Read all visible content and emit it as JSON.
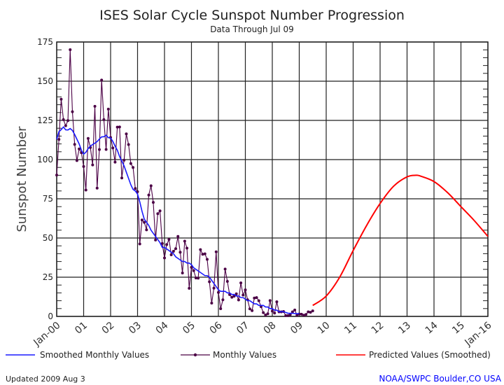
{
  "chart_data": {
    "type": "line",
    "title": "ISES Solar Cycle Sunspot Number Progression",
    "subtitle": "Data Through Jul 09",
    "ylabel": "Sunspot Number",
    "xlabel": "",
    "ylim": [
      0,
      175
    ],
    "yticks": [
      "0",
      "25",
      "50",
      "75",
      "100",
      "125",
      "150",
      "175"
    ],
    "xlim": [
      "2000-01",
      "2016-01"
    ],
    "xticks": [
      "Jan-00",
      "01",
      "02",
      "03",
      "04",
      "05",
      "06",
      "07",
      "08",
      "09",
      "10",
      "11",
      "12",
      "13",
      "14",
      "15",
      "Jan-16"
    ],
    "grid": true,
    "legend_position": "bottom",
    "series": [
      {
        "name": "Monthly Values",
        "color": "#4b0045",
        "start": "2000-01",
        "values": [
          90.1,
          112.9,
          138.5,
          125.5,
          121.6,
          124.9,
          170.1,
          130.5,
          109.7,
          99.4,
          106.8,
          104.4,
          95.6,
          80.6,
          113.5,
          107.7,
          96.6,
          134.0,
          81.8,
          106.4,
          150.7,
          125.5,
          106.5,
          132.2,
          114.1,
          107.4,
          98.4,
          120.7,
          120.8,
          88.3,
          99.6,
          116.4,
          109.6,
          97.5,
          95.0,
          81.6,
          79.5,
          46.2,
          61.5,
          60.0,
          55.2,
          77.4,
          83.3,
          72.7,
          48.7,
          65.5,
          67.3,
          46.5,
          37.3,
          45.8,
          49.1,
          39.3,
          41.5,
          43.2,
          51.0,
          40.9,
          27.7,
          48.0,
          43.5,
          17.9,
          31.3,
          29.2,
          24.5,
          24.4,
          42.6,
          39.6,
          39.9,
          36.4,
          22.1,
          8.5,
          18.0,
          41.2,
          15.3,
          4.9,
          10.6,
          30.2,
          22.3,
          13.9,
          12.2,
          12.9,
          14.4,
          10.5,
          21.4,
          13.6,
          16.9,
          10.6,
          4.8,
          3.7,
          11.7,
          12.0,
          10.0,
          6.2,
          2.4,
          0.9,
          1.7,
          10.1,
          3.4,
          2.1,
          9.3,
          2.9,
          2.9,
          3.1,
          0.5,
          0.5,
          1.1,
          2.9,
          4.1,
          0.8,
          1.5,
          1.4,
          0.7,
          1.2,
          2.9,
          2.6,
          3.5
        ]
      },
      {
        "name": "Smoothed Monthly Values",
        "color": "#1a1aff",
        "start": "2000-01",
        "values": [
          112.9,
          117.8,
          119.1,
          120.8,
          119.0,
          118.9,
          119.8,
          118.6,
          116.0,
          113.0,
          110.0,
          106.0,
          103.5,
          104.7,
          107.0,
          108.7,
          109.6,
          110.5,
          111.5,
          113.1,
          114.5,
          114.6,
          115.5,
          114.0,
          113.8,
          111.6,
          108.6,
          106.0,
          102.0,
          99.0,
          96.0,
          92.0,
          88.0,
          84.0,
          81.0,
          80.0,
          78.0,
          73.0,
          67.0,
          62.0,
          60.0,
          58.0,
          55.0,
          53.0,
          51.0,
          49.0,
          47.0,
          44.0,
          44.0,
          43.0,
          42.0,
          41.0,
          40.0,
          38.0,
          37.0,
          36.0,
          35.0,
          35.0,
          34.0,
          34.0,
          33.0,
          31.0,
          30.0,
          29.0,
          28.0,
          27.0,
          26.0,
          26.0,
          25.0,
          23.0,
          21.0,
          19.0,
          17.0,
          16.0,
          16.0,
          16.0,
          15.0,
          15.0,
          14.0,
          14.0,
          13.0,
          13.0,
          12.0,
          12.0,
          11.0,
          10.0,
          10.0,
          9.0,
          8.0,
          8.0,
          7.0,
          7.0,
          7.0,
          6.0,
          6.0,
          5.0,
          5.0,
          4.0,
          4.0,
          3.0,
          3.0,
          3.0,
          2.5,
          2.0,
          2.0,
          2.0,
          1.8,
          1.7,
          1.8
        ]
      },
      {
        "name": "Predicted Values (Smoothed)",
        "color": "#ff0000",
        "points": [
          [
            "2009-07",
            7
          ],
          [
            "2010-01",
            13
          ],
          [
            "2010-07",
            25
          ],
          [
            "2011-01",
            42
          ],
          [
            "2011-07",
            58
          ],
          [
            "2012-01",
            72
          ],
          [
            "2012-07",
            83
          ],
          [
            "2013-01",
            89
          ],
          [
            "2013-05",
            90
          ],
          [
            "2013-07",
            89.5
          ],
          [
            "2014-01",
            86
          ],
          [
            "2014-07",
            79
          ],
          [
            "2015-01",
            70
          ],
          [
            "2015-07",
            61
          ],
          [
            "2016-01",
            51
          ]
        ]
      }
    ]
  },
  "legend": {
    "smoothed": "Smoothed Monthly Values",
    "monthly": "Monthly Values",
    "predicted": "Predicted Values (Smoothed)"
  },
  "footer": {
    "updated": "Updated 2009 Aug  3",
    "source": "NOAA/SWPC Boulder,CO USA",
    "source_color": "#0000ff"
  }
}
